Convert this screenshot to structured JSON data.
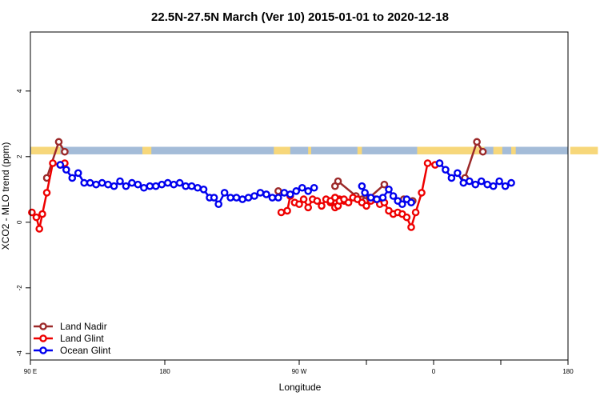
{
  "chart_data": {
    "type": "line",
    "title": "22.5N-27.5N March (Ver 10)   2015-01-01 to 2020-12-18",
    "xlabel": "Longitude",
    "ylabel": "XCO2 - MLO trend (ppm)",
    "xlim": [
      90,
      450
    ],
    "ylim": [
      -4.2,
      5.8
    ],
    "x_ticks": [
      {
        "value": 90,
        "label": "90 E"
      },
      {
        "value": 180,
        "label": "180"
      },
      {
        "value": 270,
        "label": "90 W"
      },
      {
        "value": 360,
        "label": "0"
      },
      {
        "value": 450,
        "label": "180"
      }
    ],
    "x_ticks_minor": [
      450,
      540
    ],
    "y_ticks": [
      {
        "value": -4,
        "label": "-4"
      },
      {
        "value": -2,
        "label": "-2"
      },
      {
        "value": 0,
        "label": "0"
      },
      {
        "value": 2,
        "label": "2"
      },
      {
        "value": 4,
        "label": "4"
      }
    ],
    "land_mask_band": {
      "y_range": [
        2.07,
        2.3
      ],
      "ocean_color": "#a4bcd8",
      "land_color": "#f7d77a",
      "land_lon": [
        [
          90.5,
          110
        ],
        [
          165,
          171
        ],
        [
          253,
          264
        ],
        [
          276,
          278
        ],
        [
          309,
          312
        ],
        [
          349,
          394
        ],
        [
          400,
          406
        ],
        [
          412,
          415
        ],
        [
          451.5,
          470
        ]
      ]
    },
    "legend_position": "bottom-left",
    "series": [
      {
        "name": "Land Nadir",
        "color": "#9c2a2a",
        "points": [
          [
            101,
            1.35
          ],
          [
            109,
            2.45
          ],
          [
            113,
            2.15
          ],
          [
            256,
            0.95
          ],
          [
            294,
            1.1
          ],
          [
            296,
            1.25
          ],
          [
            308,
            0.8
          ],
          [
            312,
            0.7
          ],
          [
            314,
            0.65
          ],
          [
            317,
            0.75
          ],
          [
            327,
            1.15
          ],
          [
            340,
            0.7
          ],
          [
            346,
            0.65
          ],
          [
            381,
            1.35
          ],
          [
            389,
            2.45
          ],
          [
            393,
            2.15
          ]
        ]
      },
      {
        "name": "Land Glint",
        "color": "#ee0000",
        "points": [
          [
            91,
            0.3
          ],
          [
            94,
            0.15
          ],
          [
            96,
            -0.2
          ],
          [
            98,
            0.25
          ],
          [
            101,
            0.9
          ],
          [
            105,
            1.8
          ],
          [
            110,
            1.75
          ],
          [
            113,
            1.8
          ],
          [
            258,
            0.3
          ],
          [
            262,
            0.35
          ],
          [
            264,
            0.8
          ],
          [
            294,
            0.45
          ],
          [
            296,
            0.5
          ],
          [
            291,
            0.6
          ],
          [
            294,
            0.75
          ],
          [
            297,
            0.7
          ],
          [
            300,
            0.65
          ],
          [
            267,
            0.6
          ],
          [
            270,
            0.55
          ],
          [
            273,
            0.7
          ],
          [
            276,
            0.45
          ],
          [
            279,
            0.7
          ],
          [
            282,
            0.65
          ],
          [
            285,
            0.5
          ],
          [
            288,
            0.7
          ],
          [
            291,
            0.65
          ],
          [
            294,
            0.75
          ],
          [
            297,
            0.65
          ],
          [
            300,
            0.7
          ],
          [
            303,
            0.6
          ],
          [
            306,
            0.75
          ],
          [
            309,
            0.7
          ],
          [
            312,
            0.6
          ],
          [
            315,
            0.5
          ],
          [
            318,
            0.65
          ],
          [
            321,
            0.7
          ],
          [
            324,
            0.55
          ],
          [
            327,
            0.6
          ],
          [
            330,
            0.35
          ],
          [
            333,
            0.25
          ],
          [
            336,
            0.3
          ],
          [
            339,
            0.25
          ],
          [
            342,
            0.15
          ],
          [
            345,
            -0.15
          ],
          [
            348,
            0.3
          ],
          [
            352,
            0.9
          ],
          [
            356,
            1.8
          ],
          [
            361,
            1.75
          ],
          [
            364,
            1.8
          ]
        ]
      },
      {
        "name": "Ocean Glint",
        "color": "#0000ee",
        "points": [
          [
            110,
            1.75
          ],
          [
            114,
            1.6
          ],
          [
            118,
            1.35
          ],
          [
            122,
            1.5
          ],
          [
            126,
            1.2
          ],
          [
            130,
            1.2
          ],
          [
            134,
            1.15
          ],
          [
            138,
            1.2
          ],
          [
            142,
            1.15
          ],
          [
            146,
            1.1
          ],
          [
            150,
            1.25
          ],
          [
            154,
            1.1
          ],
          [
            158,
            1.2
          ],
          [
            162,
            1.15
          ],
          [
            166,
            1.05
          ],
          [
            170,
            1.1
          ],
          [
            174,
            1.1
          ],
          [
            178,
            1.15
          ],
          [
            182,
            1.2
          ],
          [
            186,
            1.15
          ],
          [
            190,
            1.2
          ],
          [
            194,
            1.1
          ],
          [
            198,
            1.1
          ],
          [
            202,
            1.05
          ],
          [
            206,
            1.0
          ],
          [
            210,
            0.75
          ],
          [
            213,
            0.75
          ],
          [
            216,
            0.55
          ],
          [
            220,
            0.9
          ],
          [
            224,
            0.75
          ],
          [
            228,
            0.75
          ],
          [
            232,
            0.7
          ],
          [
            236,
            0.75
          ],
          [
            240,
            0.8
          ],
          [
            244,
            0.9
          ],
          [
            248,
            0.85
          ],
          [
            252,
            0.75
          ],
          [
            256,
            0.75
          ],
          [
            260,
            0.9
          ],
          [
            264,
            0.85
          ],
          [
            268,
            0.95
          ],
          [
            272,
            1.05
          ],
          [
            276,
            0.95
          ],
          [
            280,
            1.05
          ],
          [
            312,
            1.1
          ],
          [
            314,
            0.9
          ],
          [
            318,
            0.75
          ],
          [
            322,
            0.7
          ],
          [
            326,
            0.75
          ],
          [
            330,
            1.0
          ],
          [
            333,
            0.8
          ],
          [
            336,
            0.65
          ],
          [
            339,
            0.55
          ],
          [
            342,
            0.7
          ],
          [
            345,
            0.6
          ],
          [
            364,
            1.8
          ],
          [
            368,
            1.6
          ],
          [
            372,
            1.35
          ],
          [
            376,
            1.5
          ],
          [
            380,
            1.2
          ],
          [
            384,
            1.25
          ],
          [
            388,
            1.15
          ],
          [
            392,
            1.25
          ],
          [
            396,
            1.15
          ],
          [
            400,
            1.1
          ],
          [
            404,
            1.25
          ],
          [
            408,
            1.1
          ],
          [
            412,
            1.2
          ]
        ]
      }
    ]
  }
}
